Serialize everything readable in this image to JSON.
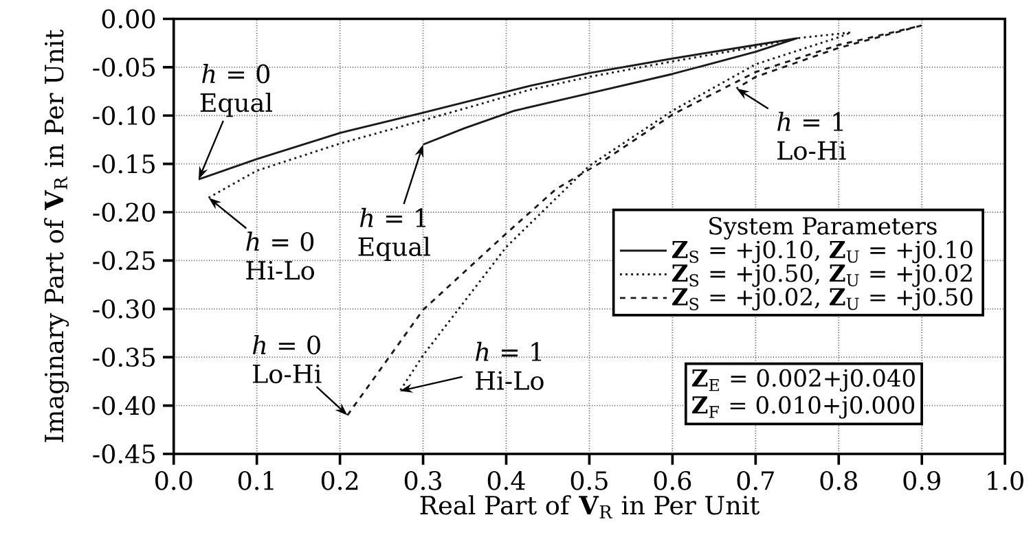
{
  "chart_data": {
    "type": "line",
    "xlabel": "Real Part of **V**$_{R}$ in Per Unit",
    "ylabel": "Imaginary Part of **V**$_{R}$ in Per Unit",
    "legend_title": "System Parameters",
    "series": [
      {
        "name": "**Z**$_{S}$ = +j0.10, **Z**$_{U}$ = +j0.10",
        "color": "#1a1a1a",
        "line_style": "solid",
        "x": [
          0.03,
          0.1,
          0.2,
          0.3,
          0.43,
          0.5,
          0.6,
          0.7,
          0.75,
          0.7,
          0.6,
          0.5,
          0.41,
          0.35,
          0.3
        ],
        "values": [
          -0.166,
          -0.145,
          -0.118,
          -0.097,
          -0.069,
          -0.056,
          -0.041,
          -0.027,
          -0.02,
          -0.034,
          -0.057,
          -0.077,
          -0.095,
          -0.113,
          -0.13
        ]
      },
      {
        "name": "**Z**$_{S}$ = +j0.50, **Z**$_{U}$ = +j0.02",
        "color": "#1a1a1a",
        "line_style": "dotted",
        "x": [
          0.042,
          0.1,
          0.2,
          0.3,
          0.43,
          0.5,
          0.6,
          0.7,
          0.75,
          0.815,
          0.8,
          0.7,
          0.6,
          0.5,
          0.4,
          0.3,
          0.272
        ],
        "values": [
          -0.185,
          -0.157,
          -0.129,
          -0.105,
          -0.073,
          -0.06,
          -0.044,
          -0.029,
          -0.02,
          -0.014,
          -0.019,
          -0.047,
          -0.095,
          -0.152,
          -0.236,
          -0.348,
          -0.385
        ]
      },
      {
        "name": "**Z**$_{S}$ = +j0.02, **Z**$_{U}$ = +j0.50",
        "color": "#1a1a1a",
        "line_style": "dashed",
        "x": [
          0.209,
          0.3,
          0.4,
          0.46,
          0.515,
          0.6,
          0.7,
          0.8,
          0.899,
          0.8,
          0.7,
          0.677
        ],
        "values": [
          -0.41,
          -0.301,
          -0.222,
          -0.176,
          -0.148,
          -0.099,
          -0.055,
          -0.027,
          -0.007,
          -0.03,
          -0.06,
          -0.072
        ]
      }
    ],
    "xlim": [
      0,
      1
    ],
    "ylim": [
      -0.45,
      0
    ],
    "xticks": [
      {
        "value": 0,
        "label": "0.0"
      },
      {
        "value": 0.1,
        "label": "0.1"
      },
      {
        "value": 0.2,
        "label": "0.2"
      },
      {
        "value": 0.3,
        "label": "0.3"
      },
      {
        "value": 0.4,
        "label": "0.4"
      },
      {
        "value": 0.5,
        "label": "0.5"
      },
      {
        "value": 0.6,
        "label": "0.6"
      },
      {
        "value": 0.7,
        "label": "0.7"
      },
      {
        "value": 0.8,
        "label": "0.8"
      },
      {
        "value": 0.9,
        "label": "0.9"
      },
      {
        "value": 1,
        "label": "1.0"
      }
    ],
    "yticks": [
      {
        "value": -0.45,
        "label": "-0.45"
      },
      {
        "value": -0.4,
        "label": "-0.40"
      },
      {
        "value": -0.35,
        "label": "-0.35"
      },
      {
        "value": -0.3,
        "label": "-0.30"
      },
      {
        "value": -0.25,
        "label": "-0.25"
      },
      {
        "value": -0.2,
        "label": "-0.20"
      },
      {
        "value": -0.15,
        "label": "-0.15"
      },
      {
        "value": -0.1,
        "label": "-0.10"
      },
      {
        "value": -0.05,
        "label": "-0.05"
      },
      {
        "value": 0,
        "label": "0.00"
      }
    ],
    "grid": true,
    "legend": "right",
    "annotations": [
      {
        "text": "*h* = 0 Equal",
        "x": 0.03,
        "y": -0.166
      },
      {
        "text": "*h* = 0 Hi-Lo",
        "x": 0.042,
        "y": -0.185
      },
      {
        "text": "*h* = 1 Equal",
        "x": 0.3,
        "y": -0.13
      },
      {
        "text": "*h* = 0 Lo-Hi",
        "x": 0.209,
        "y": -0.41
      },
      {
        "text": "*h* = 1 Hi-Lo",
        "x": 0.272,
        "y": -0.385
      },
      {
        "text": "*h* = 1 Lo-Hi",
        "x": 0.677,
        "y": -0.072
      },
      "**Z**$_{E}$ = 0.002+j0.040",
      "**Z**$_{F}$ = 0.010+j0.000"
    ]
  }
}
